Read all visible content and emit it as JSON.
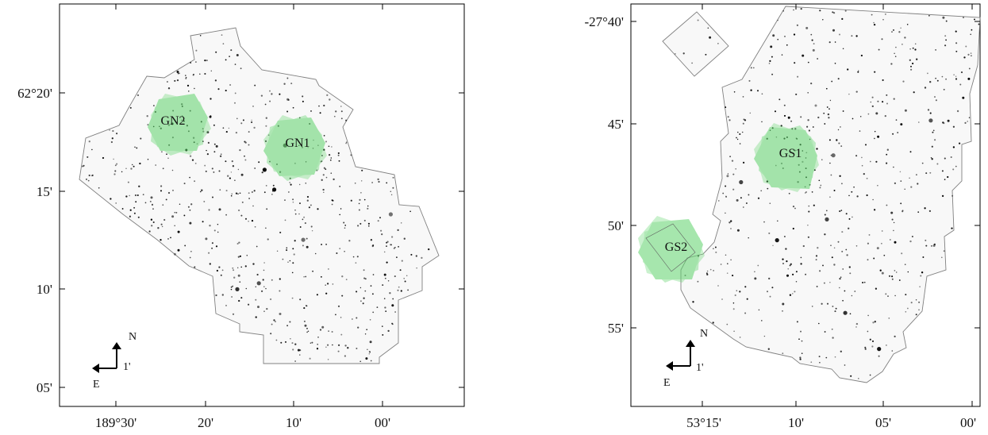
{
  "panels": [
    {
      "id": "goods-north",
      "x_ticks": [
        "189°30'",
        "20'",
        "10'",
        "00'"
      ],
      "y_ticks": [
        "62°20'",
        "15'",
        "10'",
        "05'"
      ],
      "fields": [
        {
          "label": "GN2",
          "color": "#5fd36b"
        },
        {
          "label": "GN1",
          "color": "#5fd36b"
        }
      ],
      "compass": {
        "north": "N",
        "east": "E",
        "scale": "1'"
      }
    },
    {
      "id": "goods-south",
      "x_ticks": [
        "53°15'",
        "10'",
        "05'",
        "00'"
      ],
      "y_ticks": [
        "-27°40'",
        "45'",
        "50'",
        "55'"
      ],
      "fields": [
        {
          "label": "GS1",
          "color": "#5fd36b"
        },
        {
          "label": "GS2",
          "color": "#5fd36b"
        }
      ],
      "compass": {
        "north": "N",
        "east": "E",
        "scale": "1'"
      }
    }
  ],
  "colors": {
    "frame": "#000000",
    "footprint_fill": "#f8f8f8",
    "footprint_edge": "#808080",
    "sources": "#000000"
  }
}
